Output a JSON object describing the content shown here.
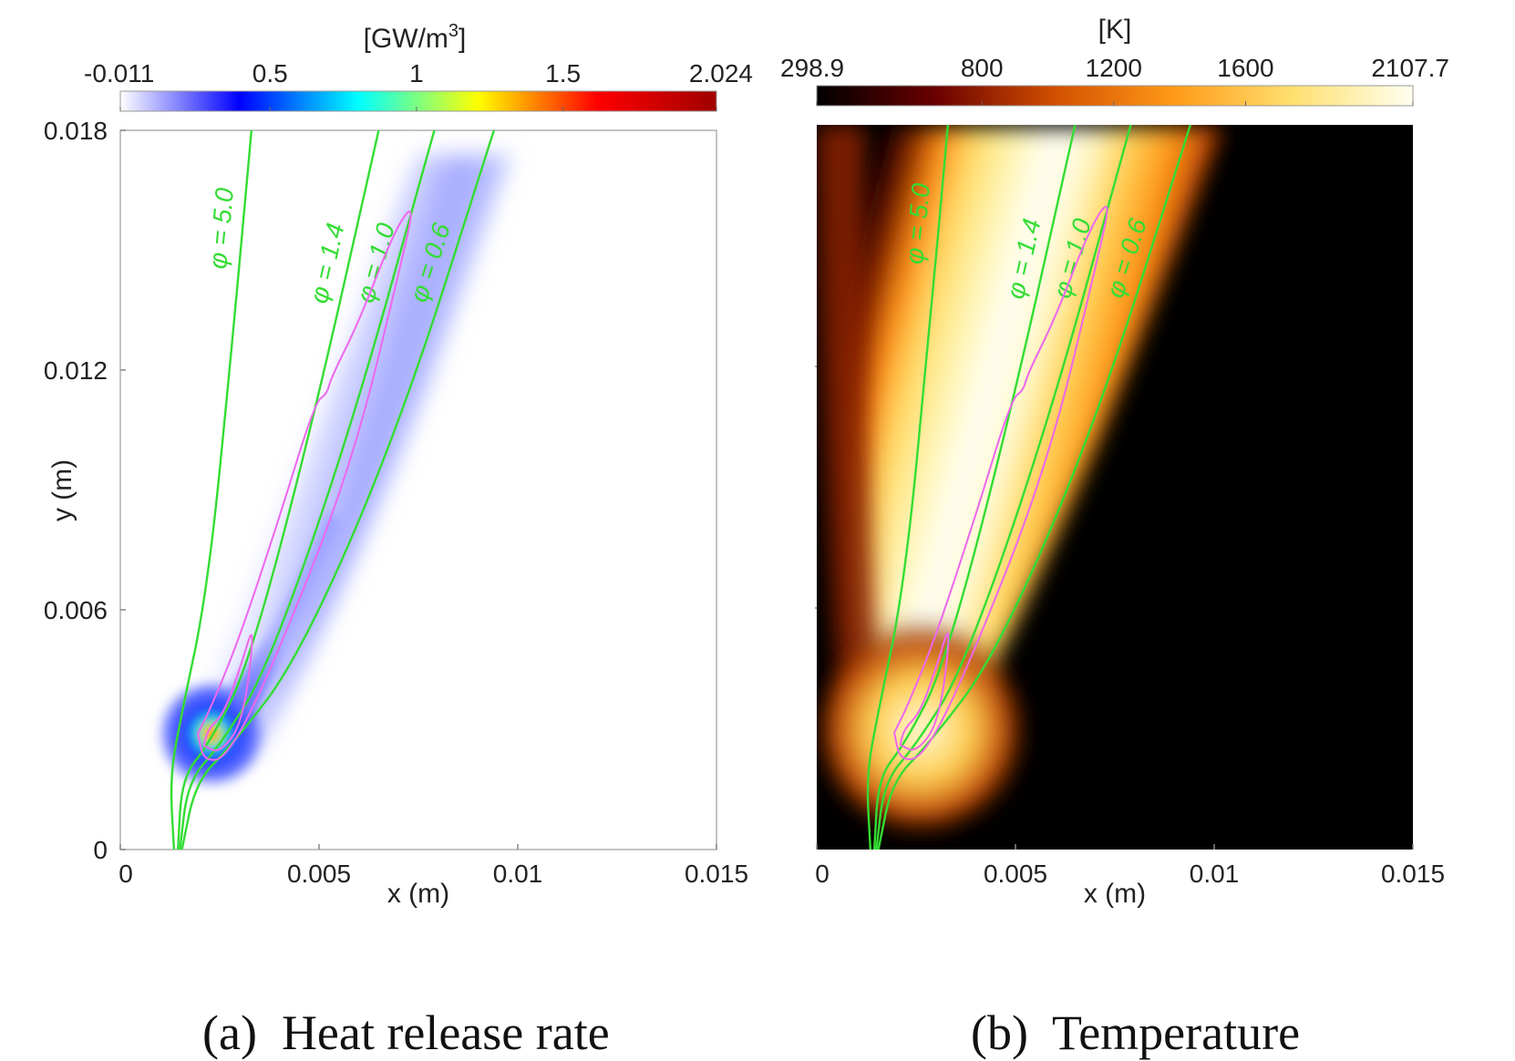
{
  "figure": {
    "panels": [
      {
        "caption_label": "(a)",
        "caption_text": "Heat release rate",
        "colorbar_unit": "[GW/m",
        "colorbar_unit_sup": "3",
        "colorbar_unit_close": "]",
        "colorbar_ticks": [
          "-0.011",
          "0.5",
          "1",
          "1.5",
          "2.024"
        ],
        "colormap": [
          "#ffffff",
          "#0000ff",
          "#00ffff",
          "#ffff00",
          "#ff0000",
          "#a00000"
        ],
        "xlabel": "x (m)",
        "ylabel": "y (m)",
        "x_ticks": [
          "0",
          "0.005",
          "0.01",
          "0.015"
        ],
        "y_ticks": [
          "0",
          "0.006",
          "0.012",
          "0.018"
        ]
      },
      {
        "caption_label": "(b)",
        "caption_text": "Temperature",
        "colorbar_unit": "[K]",
        "colorbar_ticks": [
          "298.9",
          "800",
          "1200",
          "1600",
          "2107.7"
        ],
        "colormap": [
          "#000000",
          "#6b0000",
          "#d25000",
          "#ff9a18",
          "#ffe070",
          "#fffff0"
        ],
        "xlabel": "x (m)",
        "x_ticks": [
          "0",
          "0.005",
          "0.01",
          "0.015"
        ]
      }
    ],
    "contour_labels": [
      "φ = 5.0",
      "φ = 1.4",
      "φ = 1.0",
      "φ = 0.6"
    ],
    "colors": {
      "equivalence_ratio_line": "#33dd33",
      "reaction_contour": "#ee66ee"
    }
  },
  "chart_data": [
    {
      "type": "heatmap",
      "title": "Heat release rate",
      "xlabel": "x (m)",
      "ylabel": "y (m)",
      "xlim": [
        0,
        0.015
      ],
      "ylim": [
        0,
        0.018
      ],
      "colorbar": {
        "unit": "GW/m3",
        "min": -0.011,
        "max": 2.024,
        "ticks": [
          -0.011,
          0.5,
          1,
          1.5,
          2.024
        ]
      },
      "peak_location": [
        0.0021,
        0.0027
      ],
      "iso_lines": [
        {
          "label": "φ = 5.0",
          "points": [
            [
              0.00135,
              0
            ],
            [
              0.00125,
              0.0018
            ],
            [
              0.0015,
              0.0032
            ],
            [
              0.0022,
              0.0065
            ],
            [
              0.0028,
              0.0125
            ],
            [
              0.0033,
              0.018
            ]
          ]
        },
        {
          "label": "φ = 1.4",
          "points": [
            [
              0.00145,
              0
            ],
            [
              0.00155,
              0.0018
            ],
            [
              0.0022,
              0.0026
            ],
            [
              0.0032,
              0.0045
            ],
            [
              0.0048,
              0.0105
            ],
            [
              0.0065,
              0.018
            ]
          ]
        },
        {
          "label": "φ = 1.0",
          "points": [
            [
              0.0015,
              0
            ],
            [
              0.0017,
              0.0017
            ],
            [
              0.0025,
              0.0026
            ],
            [
              0.0037,
              0.0045
            ],
            [
              0.0058,
              0.0105
            ],
            [
              0.0079,
              0.018
            ]
          ]
        },
        {
          "label": "φ = 0.6",
          "points": [
            [
              0.00155,
              0
            ],
            [
              0.0019,
              0.0017
            ],
            [
              0.0028,
              0.0026
            ],
            [
              0.0045,
              0.0048
            ],
            [
              0.007,
              0.0105
            ],
            [
              0.0094,
              0.018
            ]
          ]
        }
      ]
    },
    {
      "type": "heatmap",
      "title": "Temperature",
      "xlabel": "x (m)",
      "xlim": [
        0,
        0.015
      ],
      "ylim": [
        0,
        0.018
      ],
      "colorbar": {
        "unit": "K",
        "min": 298.9,
        "max": 2107.7,
        "ticks": [
          298.9,
          800,
          1200,
          1600,
          2107.7
        ]
      },
      "iso_lines": [
        {
          "label": "φ = 5.0",
          "points": [
            [
              0.00135,
              0
            ],
            [
              0.00125,
              0.0018
            ],
            [
              0.0015,
              0.0032
            ],
            [
              0.0022,
              0.0065
            ],
            [
              0.0028,
              0.0125
            ],
            [
              0.0033,
              0.018
            ]
          ]
        },
        {
          "label": "φ = 1.4",
          "points": [
            [
              0.00145,
              0
            ],
            [
              0.00155,
              0.0018
            ],
            [
              0.0022,
              0.0026
            ],
            [
              0.0032,
              0.0045
            ],
            [
              0.0048,
              0.0105
            ],
            [
              0.0065,
              0.018
            ]
          ]
        },
        {
          "label": "φ = 1.0",
          "points": [
            [
              0.0015,
              0
            ],
            [
              0.0017,
              0.0017
            ],
            [
              0.0025,
              0.0026
            ],
            [
              0.0037,
              0.0045
            ],
            [
              0.0058,
              0.0105
            ],
            [
              0.0079,
              0.018
            ]
          ]
        },
        {
          "label": "φ = 0.6",
          "points": [
            [
              0.00155,
              0
            ],
            [
              0.0019,
              0.0017
            ],
            [
              0.0028,
              0.0026
            ],
            [
              0.0045,
              0.0048
            ],
            [
              0.007,
              0.0105
            ],
            [
              0.0094,
              0.018
            ]
          ]
        }
      ]
    }
  ]
}
